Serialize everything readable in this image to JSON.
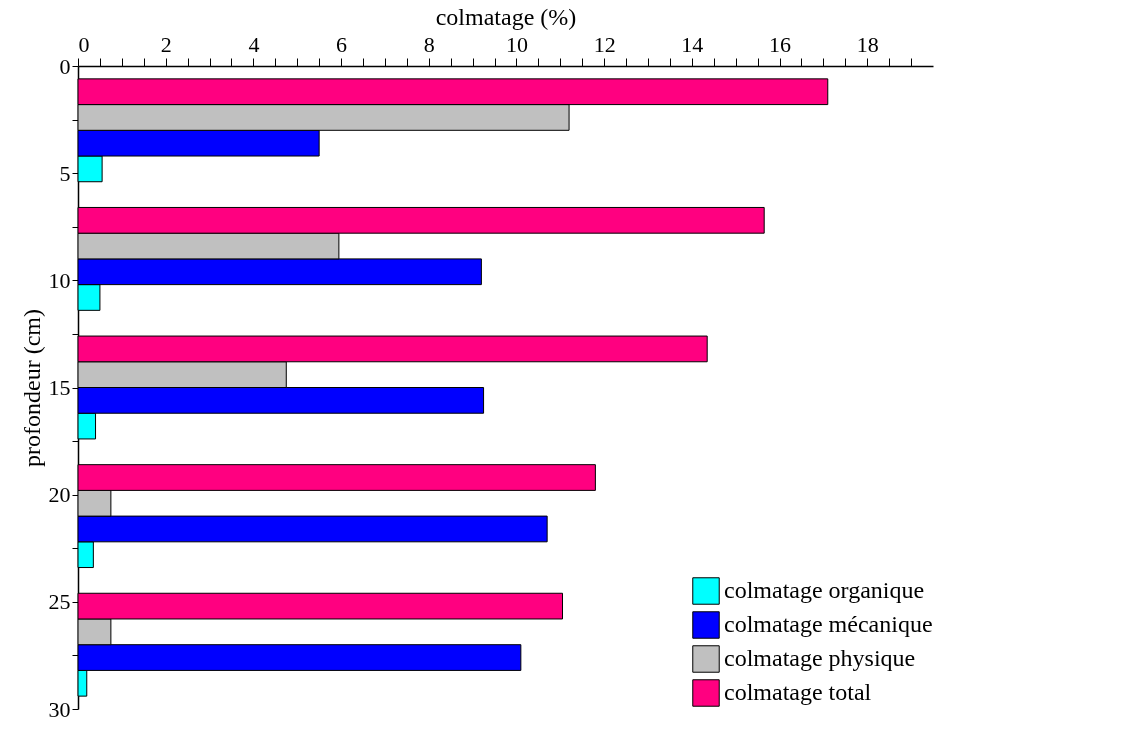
{
  "chart_data": {
    "type": "bar",
    "orientation": "horizontal",
    "xlabel": "colmatage (%)",
    "ylabel": "profondeur (cm)",
    "x": [
      3,
      9,
      15,
      21,
      27
    ],
    "series": [
      {
        "name": "colmatage organique",
        "color": "#00ffff",
        "values": [
          0.55,
          0.5,
          0.4,
          0.35,
          0.2
        ]
      },
      {
        "name": "colmatage mécanique",
        "color": "#0000ff",
        "values": [
          5.5,
          9.2,
          9.25,
          10.7,
          10.1
        ]
      },
      {
        "name": "colmatage physique",
        "color": "#c0c0c0",
        "values": [
          11.2,
          5.95,
          4.75,
          0.75,
          0.75
        ]
      },
      {
        "name": "colmatage total",
        "color": "#ff0080",
        "values": [
          17.1,
          15.65,
          14.35,
          11.8,
          11.05
        ]
      }
    ],
    "xlim": [
      0,
      19.5
    ],
    "xticks": [
      0,
      {
        "value": 0.5,
        "label": null
      },
      {
        "value": 1,
        "label": null
      },
      {
        "value": 1.5,
        "label": null
      },
      2,
      {
        "value": 2.5,
        "label": null
      },
      {
        "value": 3,
        "label": null
      },
      {
        "value": 3.5,
        "label": null
      },
      4,
      {
        "value": 4.5,
        "label": null
      },
      {
        "value": 5,
        "label": null
      },
      {
        "value": 5.5,
        "label": null
      },
      6,
      {
        "value": 6.5,
        "label": null
      },
      {
        "value": 7,
        "label": null
      },
      {
        "value": 7.5,
        "label": null
      },
      8,
      {
        "value": 8.5,
        "label": null
      },
      {
        "value": 9,
        "label": null
      },
      {
        "value": 9.5,
        "label": null
      },
      10,
      {
        "value": 10.5,
        "label": null
      },
      {
        "value": 11,
        "label": null
      },
      {
        "value": 11.5,
        "label": null
      },
      12,
      {
        "value": 12.5,
        "label": null
      },
      {
        "value": 13,
        "label": null
      },
      {
        "value": 13.5,
        "label": null
      },
      14,
      {
        "value": 14.5,
        "label": null
      },
      {
        "value": 15,
        "label": null
      },
      {
        "value": 15.5,
        "label": null
      },
      16,
      {
        "value": 16.5,
        "label": null
      },
      {
        "value": 17,
        "label": null
      },
      {
        "value": 17.5,
        "label": null
      },
      18,
      {
        "value": 18.5,
        "label": null
      },
      {
        "value": 19,
        "label": null
      }
    ],
    "ylim": [
      30,
      0
    ],
    "yticks": [
      0,
      {
        "value": 2.5,
        "label": null
      },
      5,
      {
        "value": 7.5,
        "label": null
      },
      10,
      {
        "value": 12.5,
        "label": null
      },
      15,
      {
        "value": 17.5,
        "label": null
      },
      20,
      {
        "value": 22.5,
        "label": null
      },
      25,
      {
        "value": 27.5,
        "label": null
      },
      30
    ],
    "legend": "bottom right",
    "grid": false
  }
}
